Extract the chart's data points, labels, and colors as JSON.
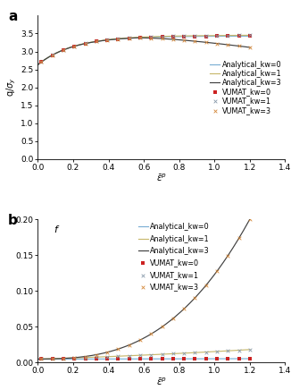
{
  "panel_a": {
    "title": "a",
    "ylabel": "q/σ_y",
    "xlim": [
      0,
      1.4
    ],
    "ylim": [
      0,
      4.0
    ],
    "yticks": [
      0,
      0.5,
      1.0,
      1.5,
      2.0,
      2.5,
      3.0,
      3.5
    ],
    "xticks": [
      0,
      0.2,
      0.4,
      0.6,
      0.8,
      1.0,
      1.2,
      1.4
    ],
    "line_kw0_color": "#7bafd4",
    "line_kw1_color": "#c8b96e",
    "line_kw3_color": "#404040",
    "vumat_kw0_color": "#cc2222",
    "vumat_kw1_color": "#8899aa",
    "vumat_kw3_color": "#d4883a",
    "label_kw0": "Analytical_kw=0",
    "label_kw1": "Analytical_kw=1",
    "label_kw3": "Analytical_kw=3",
    "label_v0": "VUMAT_kw=0",
    "label_v1": "VUMAT_kw=1",
    "label_v3": "VUMAT_kw=3"
  },
  "panel_b": {
    "title": "b",
    "ylabel_inner": "f",
    "xlim": [
      0,
      1.4
    ],
    "ylim": [
      0,
      0.2
    ],
    "yticks": [
      0,
      0.05,
      0.1,
      0.15,
      0.2
    ],
    "xticks": [
      0,
      0.2,
      0.4,
      0.6,
      0.8,
      1.0,
      1.2,
      1.4
    ],
    "line_kw0_color": "#7bafd4",
    "line_kw1_color": "#c8b96e",
    "line_kw3_color": "#404040",
    "vumat_kw0_color": "#cc2222",
    "vumat_kw1_color": "#8899aa",
    "vumat_kw3_color": "#d4883a",
    "label_kw0": "Analytical_kw=0",
    "label_kw1": "Analytical_kw=1",
    "label_kw3": "Analytical_kw=3",
    "label_v0": "VUMAT_kw=0",
    "label_v1": "VUMAT_kw=1",
    "label_v3": "VUMAT_kw=3"
  },
  "bg": "#ffffff",
  "fs": 7,
  "lfs": 5.8
}
